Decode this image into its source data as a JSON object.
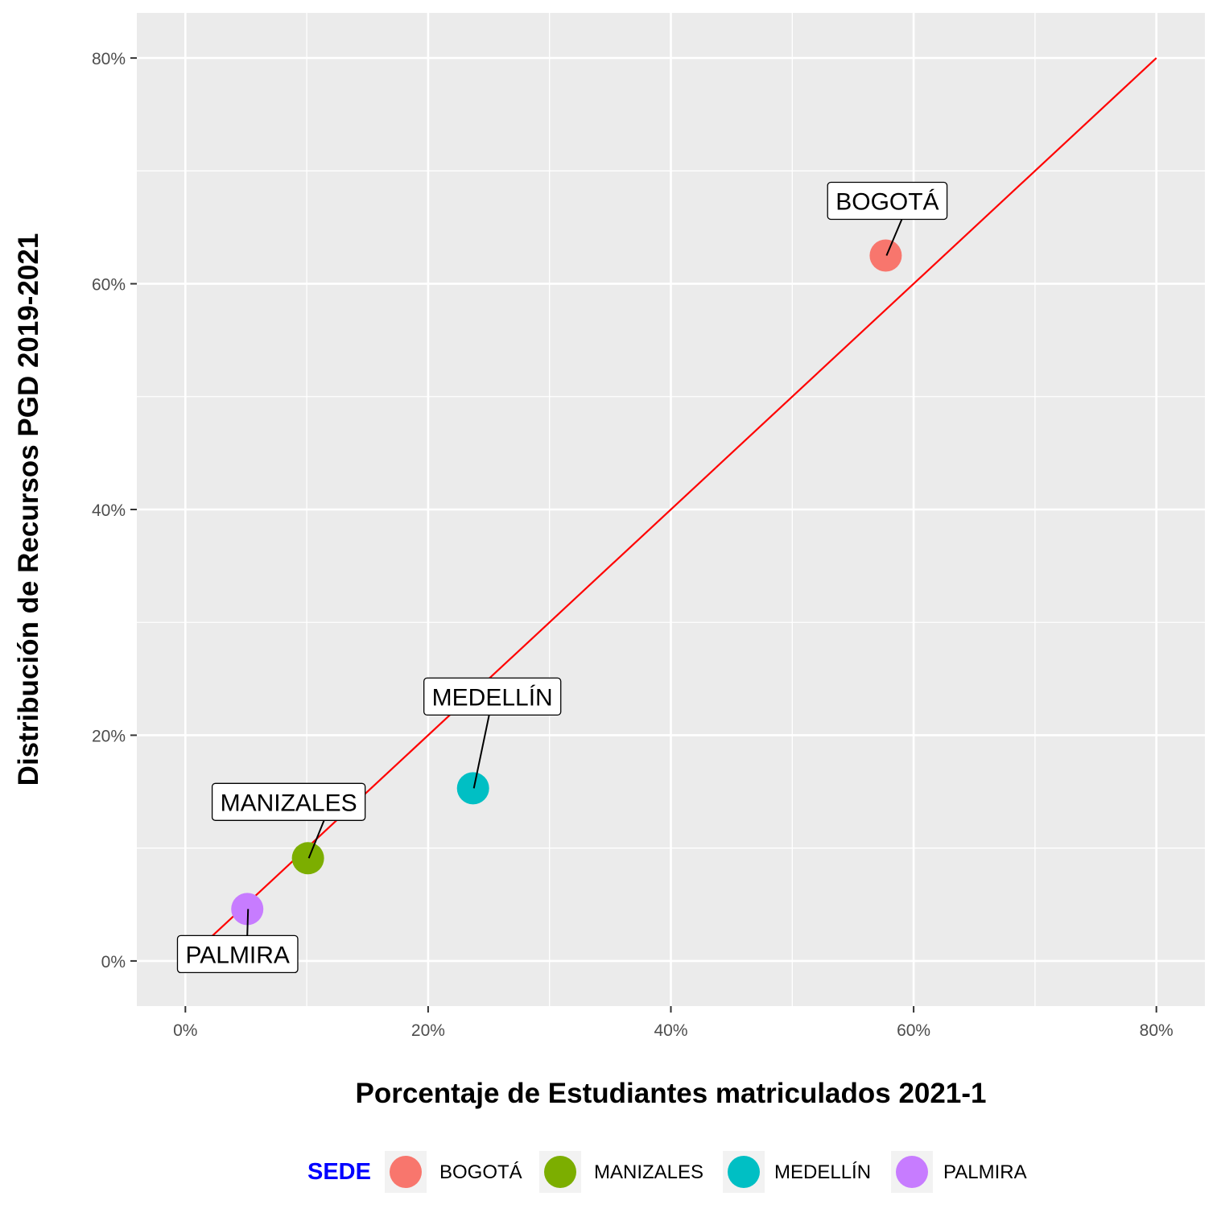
{
  "chart_data": {
    "type": "scatter",
    "xlabel": "Porcentaje de Estudiantes matriculados 2021-1",
    "ylabel": "Distribución de Recursos PGD 2019-2021",
    "xlim": [
      -0.04,
      0.84
    ],
    "ylim": [
      -0.04,
      0.84
    ],
    "x_ticks": [
      0,
      0.2,
      0.4,
      0.6,
      0.8
    ],
    "y_ticks": [
      0,
      0.2,
      0.4,
      0.6,
      0.8
    ],
    "x_tick_labels": [
      "0%",
      "20%",
      "40%",
      "60%",
      "80%"
    ],
    "y_tick_labels": [
      "0%",
      "20%",
      "40%",
      "60%",
      "80%"
    ],
    "minor_breaks": [
      0.1,
      0.3,
      0.5,
      0.7
    ],
    "grid": true,
    "panel_background": "#EBEBEB",
    "reference_line": {
      "type": "identity",
      "from": 0.02,
      "to": 0.8,
      "color": "#FF0000"
    },
    "series": [
      {
        "name": "BOGOTÁ",
        "color": "#F8766D",
        "x": 0.577,
        "y": 0.625,
        "label": "BOGOTÁ"
      },
      {
        "name": "MANIZALES",
        "color": "#7CAE00",
        "x": 0.101,
        "y": 0.091,
        "label": "MANIZALES"
      },
      {
        "name": "MEDELLÍN",
        "color": "#00BFC4",
        "x": 0.237,
        "y": 0.153,
        "label": "MEDELLÍN"
      },
      {
        "name": "PALMIRA",
        "color": "#C77CFF",
        "x": 0.051,
        "y": 0.046,
        "label": "PALMIRA"
      }
    ],
    "legend": {
      "position": "bottom",
      "title": "SEDE",
      "title_color": "#0000FF",
      "items": [
        "BOGOTÁ",
        "MANIZALES",
        "MEDELLÍN",
        "PALMIRA"
      ]
    }
  }
}
